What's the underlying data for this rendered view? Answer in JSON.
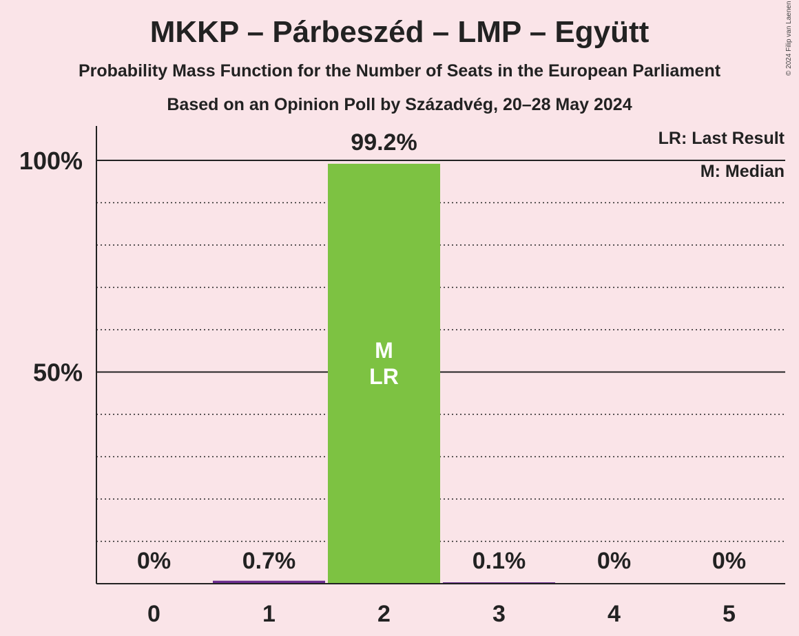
{
  "title": "MKKP – Párbeszéd – LMP – Együtt",
  "subtitle": "Probability Mass Function for the Number of Seats in the European Parliament",
  "subtitle2": "Based on an Opinion Poll by Századvég, 20–28 May 2024",
  "copyright": "© 2024 Filip van Laenen",
  "legend": {
    "last_result": "LR: Last Result",
    "median": "M: Median"
  },
  "colors": {
    "background": "#fae4e8",
    "bar_main": "#7dc242",
    "bar_minor": "#6a2c8e",
    "text": "#222222"
  },
  "chart_data": {
    "type": "bar",
    "categories": [
      "0",
      "1",
      "2",
      "3",
      "4",
      "5"
    ],
    "values": [
      0,
      0.7,
      99.2,
      0.1,
      0,
      0
    ],
    "value_labels": [
      "0%",
      "0.7%",
      "99.2%",
      "0.1%",
      "0%",
      "0%"
    ],
    "y_ticks": [
      {
        "value": 50,
        "label": "50%"
      },
      {
        "value": 100,
        "label": "100%"
      }
    ],
    "ylim": [
      0,
      100
    ],
    "grid": true,
    "median_category": "2",
    "last_result_category": "2",
    "marker_labels": {
      "median": "M",
      "last_result": "LR"
    }
  }
}
